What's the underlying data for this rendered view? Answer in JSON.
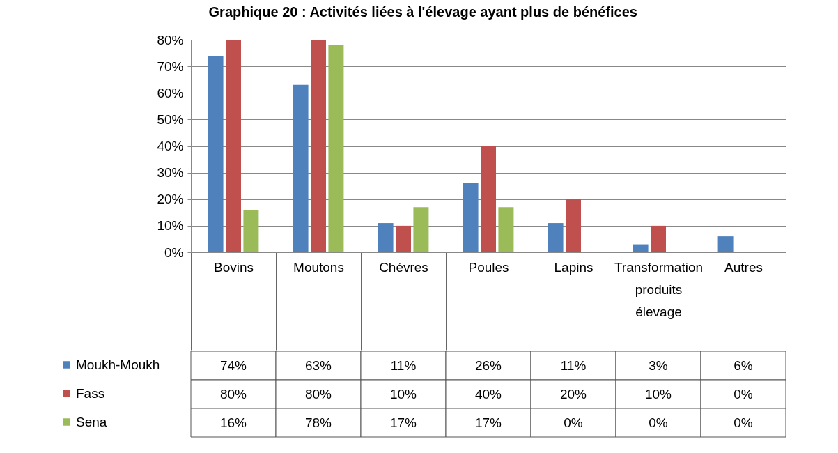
{
  "chart_data": {
    "type": "bar",
    "title": "Graphique 20 : Activités liées à l'élevage ayant plus de bénéfices",
    "categories": [
      "Bovins",
      "Moutons",
      "Chévres",
      "Poules",
      "Lapins",
      "Transformation produits élevage",
      "Autres"
    ],
    "series": [
      {
        "name": "Moukh-Moukh",
        "color": "#4f81bd",
        "values": [
          74,
          63,
          11,
          26,
          11,
          3,
          6
        ],
        "value_labels": [
          "74%",
          "63%",
          "11%",
          "26%",
          "11%",
          "3%",
          "6%"
        ]
      },
      {
        "name": "Fass",
        "color": "#c0504d",
        "values": [
          80,
          80,
          10,
          40,
          20,
          10,
          0
        ],
        "value_labels": [
          "80%",
          "80%",
          "10%",
          "40%",
          "20%",
          "10%",
          "0%"
        ]
      },
      {
        "name": "Sena",
        "color": "#9bbb59",
        "values": [
          16,
          78,
          17,
          17,
          0,
          0,
          0
        ],
        "value_labels": [
          "16%",
          "78%",
          "17%",
          "17%",
          "0%",
          "0%",
          "0%"
        ]
      }
    ],
    "ylim": [
      0,
      80
    ],
    "yticks": [
      {
        "value": 0,
        "label": "0%"
      },
      {
        "value": 10,
        "label": "10%"
      },
      {
        "value": 20,
        "label": "20%"
      },
      {
        "value": 30,
        "label": "30%"
      },
      {
        "value": 40,
        "label": "40%"
      },
      {
        "value": 50,
        "label": "50%"
      },
      {
        "value": 60,
        "label": "60%"
      },
      {
        "value": 70,
        "label": "70%"
      },
      {
        "value": 80,
        "label": "80%"
      }
    ],
    "grid": "y",
    "legend": "bottom left"
  }
}
